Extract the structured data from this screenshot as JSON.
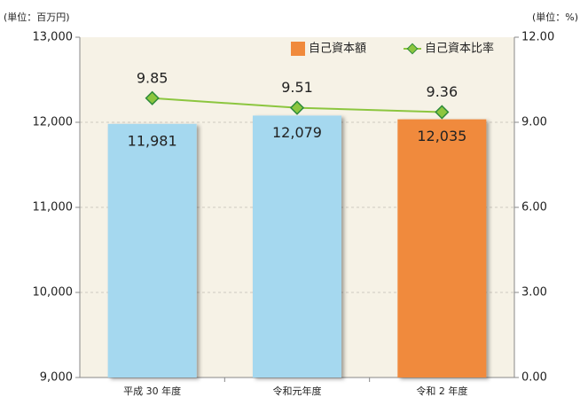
{
  "chart_data": {
    "type": "bar",
    "y_unit": "(単位：百万円)",
    "y2_unit": "(単位：%)",
    "categories": [
      "平成 30 年度",
      "令和元年度",
      "令和 2 年度"
    ],
    "series": [
      {
        "name": "自己資本額",
        "type": "bar",
        "color": "#f08a3c",
        "colors": [
          "#a5d8ef",
          "#a5d8ef",
          "#f08a3c"
        ],
        "values": [
          11981,
          12079,
          12035
        ],
        "value_labels": [
          "11,981",
          "12,079",
          "12,035"
        ]
      },
      {
        "name": "自己資本比率",
        "type": "line",
        "axis": "y2",
        "color": "#8cc63f",
        "marker_color": "#2e8b3a",
        "values": [
          9.85,
          9.51,
          9.36
        ]
      }
    ],
    "ylim": [
      9000,
      13000
    ],
    "yticks": [
      {
        "value": 9000,
        "label": "9,000"
      },
      {
        "value": 10000,
        "label": "10,000"
      },
      {
        "value": 11000,
        "label": "11,000"
      },
      {
        "value": 12000,
        "label": "12,000"
      },
      {
        "value": 13000,
        "label": "13,000"
      }
    ],
    "y2lim": [
      0,
      12
    ],
    "y2ticks": [
      {
        "value": 0,
        "label": "0.00"
      },
      {
        "value": 3,
        "label": "3.00"
      },
      {
        "value": 6,
        "label": "6.00"
      },
      {
        "value": 9,
        "label": "9.00"
      },
      {
        "value": 12,
        "label": "12.00"
      }
    ],
    "grid": true,
    "background": "#f6f2e6"
  }
}
